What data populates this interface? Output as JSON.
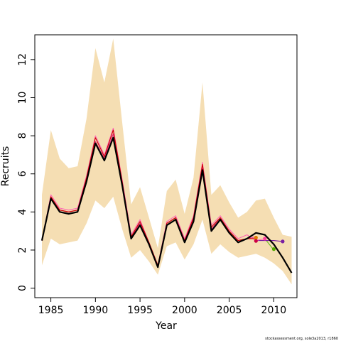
{
  "chart_data": {
    "type": "line",
    "title": "",
    "xlabel": "Year",
    "ylabel": "Recruits",
    "xlim": [
      1983.2,
      2012.6
    ],
    "ylim": [
      -0.5,
      13.3
    ],
    "x_ticks": [
      1985,
      1990,
      1995,
      2000,
      2005,
      2010
    ],
    "y_ticks": [
      0,
      2,
      4,
      6,
      8,
      10,
      12
    ],
    "grid": false,
    "legend": "none",
    "band": {
      "color": "#f5deb3",
      "x": [
        1984,
        1985,
        1986,
        1987,
        1988,
        1989,
        1990,
        1991,
        1992,
        1993,
        1994,
        1995,
        1996,
        1997,
        1998,
        1999,
        2000,
        2001,
        2002,
        2003,
        2004,
        2005,
        2006,
        2007,
        2008,
        2009,
        2010,
        2011,
        2012
      ],
      "upper": [
        4.9,
        8.3,
        6.8,
        6.3,
        6.4,
        8.9,
        12.6,
        10.8,
        13.1,
        8.7,
        4.4,
        5.3,
        3.7,
        2.1,
        5.1,
        5.7,
        3.9,
        5.8,
        10.8,
        4.9,
        5.4,
        4.5,
        3.7,
        4.0,
        4.6,
        4.7,
        3.7,
        2.8,
        2.7
      ],
      "lower": [
        1.2,
        2.6,
        2.3,
        2.4,
        2.5,
        3.4,
        4.6,
        4.2,
        4.8,
        3.1,
        1.6,
        2.0,
        1.4,
        0.7,
        2.2,
        2.4,
        1.5,
        2.3,
        3.6,
        1.8,
        2.3,
        1.9,
        1.6,
        1.7,
        1.8,
        1.6,
        1.3,
        0.9,
        0.2
      ]
    },
    "series": [
      {
        "color": "#000000",
        "x": [
          1984,
          1985,
          1986,
          1987,
          1988,
          1989,
          1990,
          1991,
          1992,
          1993,
          1994,
          1995,
          1996,
          1997,
          1998,
          1999,
          2000,
          2001,
          2002,
          2003,
          2004,
          2005,
          2006,
          2007,
          2008,
          2009,
          2010,
          2011,
          2012
        ],
        "values": [
          2.5,
          4.7,
          4.0,
          3.9,
          4.0,
          5.6,
          7.6,
          6.7,
          7.9,
          5.4,
          2.6,
          3.3,
          2.3,
          1.1,
          3.3,
          3.6,
          2.4,
          3.5,
          6.2,
          3.0,
          3.6,
          2.9,
          2.4,
          2.6,
          2.9,
          2.8,
          2.3,
          1.6,
          0.8
        ]
      },
      {
        "color": "#cc0000",
        "x": [
          1984,
          1985,
          1986,
          1987,
          1988,
          1989,
          1990,
          1991,
          1992,
          1993,
          1994,
          1995,
          1996,
          1997,
          1998,
          1999,
          2000,
          2001,
          2002,
          2003,
          2004,
          2005,
          2006,
          2007,
          2008
        ],
        "values": [
          2.5,
          4.8,
          4.1,
          4.0,
          4.1,
          5.8,
          7.9,
          6.9,
          8.3,
          5.6,
          2.7,
          3.5,
          2.4,
          1.2,
          3.4,
          3.7,
          2.5,
          3.7,
          6.5,
          3.2,
          3.7,
          3.0,
          2.5,
          2.6,
          2.6
        ]
      },
      {
        "color": "#ff69b4",
        "x": [
          1984,
          1985,
          1986,
          1987,
          1988,
          1989,
          1990,
          1991,
          1992,
          1993,
          1994,
          1995,
          1996,
          1997,
          1998,
          1999,
          2000,
          2001,
          2002,
          2003,
          2004,
          2005,
          2006,
          2007,
          2008,
          2009
        ],
        "values": [
          2.5,
          4.9,
          4.2,
          4.1,
          4.2,
          5.9,
          8.0,
          7.0,
          8.4,
          5.7,
          2.8,
          3.6,
          2.4,
          1.2,
          3.5,
          3.8,
          2.6,
          3.8,
          6.6,
          3.3,
          3.8,
          3.1,
          2.6,
          2.8,
          2.5,
          2.6
        ]
      },
      {
        "color": "#e0307f",
        "x": [
          1984,
          1985,
          1986,
          1987,
          1988,
          1989,
          1990,
          1991,
          1992,
          1993,
          1994,
          1995,
          1996,
          1997,
          1998,
          1999,
          2000,
          2001,
          2002,
          2003,
          2004,
          2005,
          2006,
          2007,
          2008
        ],
        "values": [
          2.5,
          4.8,
          4.1,
          4.0,
          4.1,
          5.7,
          7.7,
          6.8,
          8.1,
          5.5,
          2.7,
          3.4,
          2.3,
          1.1,
          3.4,
          3.7,
          2.5,
          3.6,
          6.3,
          3.1,
          3.7,
          3.0,
          2.5,
          2.6,
          2.7
        ]
      },
      {
        "color": "#7a1fa2",
        "x": [
          2008,
          2009,
          2010,
          2011
        ],
        "values": [
          2.5,
          2.5,
          2.5,
          2.45
        ]
      },
      {
        "color": "#66bb22",
        "x": [
          2009,
          2010
        ],
        "values": [
          2.6,
          2.0
        ]
      }
    ],
    "points": [
      {
        "x": 2008,
        "y": 2.65,
        "color": "#e07b00"
      },
      {
        "x": 2008,
        "y": 2.48,
        "color": "#cc0044"
      },
      {
        "x": 2009,
        "y": 2.6,
        "color": "#ff3fa0"
      },
      {
        "x": 2010,
        "y": 2.05,
        "color": "#55aa00"
      },
      {
        "x": 2011,
        "y": 2.45,
        "color": "#7a1fa2"
      }
    ]
  },
  "footer": {
    "credit": "stockassessment.org, sole3a2013, r1860"
  }
}
